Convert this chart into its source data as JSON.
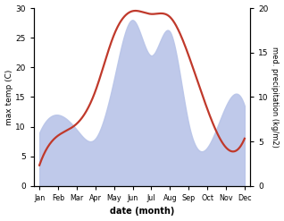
{
  "months": [
    "Jan",
    "Feb",
    "Mar",
    "Apr",
    "May",
    "Jun",
    "Jul",
    "Aug",
    "Sep",
    "Oct",
    "Nov",
    "Dec"
  ],
  "temp": [
    3.5,
    8.5,
    10.5,
    16.0,
    25.5,
    29.5,
    29.0,
    28.5,
    22.0,
    13.0,
    6.5,
    8.0
  ],
  "precip_left_scale": [
    9.0,
    12.0,
    9.5,
    8.0,
    18.0,
    28.0,
    22.0,
    26.0,
    10.5,
    6.5,
    13.5,
    13.5
  ],
  "precip_right_scale": [
    0,
    5,
    10,
    15,
    20
  ],
  "temp_color": "#c0392b",
  "precip_fill_color": "#b8c4e8",
  "title": "",
  "xlabel": "date (month)",
  "ylabel_left": "max temp (C)",
  "ylabel_right": "med. precipitation (kg/m2)",
  "ylim_left": [
    0,
    30
  ],
  "ylim_right": [
    0,
    21.5
  ],
  "yticks_left": [
    0,
    5,
    10,
    15,
    20,
    25,
    30
  ],
  "yticks_right": [
    0,
    5,
    10,
    15,
    20
  ],
  "background": "#ffffff"
}
